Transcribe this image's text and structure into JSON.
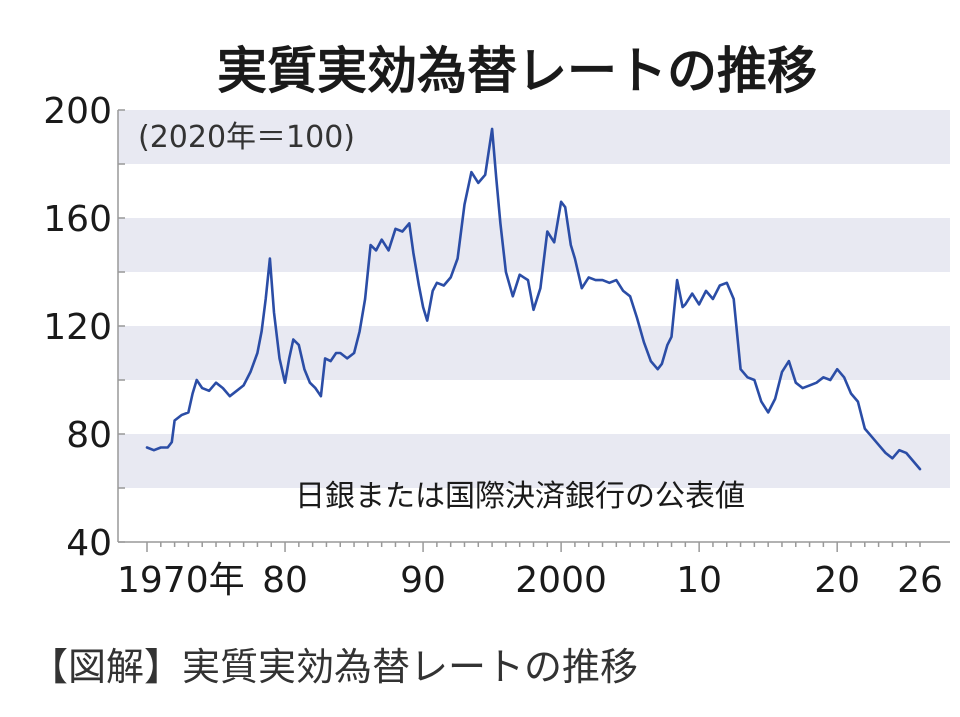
{
  "chart_data": {
    "type": "line",
    "title": "実質実効為替レートの推移",
    "subtitle": "(2020年＝100)",
    "source": "日銀または国際決済銀行の公表値",
    "caption": "【図解】実質実効為替レートの推移",
    "ylim": [
      40,
      200
    ],
    "yticks": [
      200,
      160,
      120,
      80,
      40
    ],
    "xlim": [
      1970,
      2026
    ],
    "xticks": [
      {
        "value": 1970,
        "label": "1970年"
      },
      {
        "value": 1980,
        "label": "80"
      },
      {
        "value": 1990,
        "label": "90"
      },
      {
        "value": 2000,
        "label": "2000"
      },
      {
        "value": 2010,
        "label": "10"
      },
      {
        "value": 2020,
        "label": "20"
      },
      {
        "value": 2026,
        "label": "26"
      }
    ],
    "grid_bands": [
      [
        60,
        80
      ],
      [
        100,
        120
      ],
      [
        140,
        160
      ],
      [
        180,
        200
      ]
    ],
    "colors": {
      "line": "#2b4da6",
      "band": "#e8e9f2"
    },
    "series": [
      {
        "x": [
          1970,
          1970.5,
          1971,
          1971.5,
          1971.8,
          1972,
          1972.5,
          1973,
          1973.3,
          1973.6,
          1974,
          1974.5,
          1975,
          1975.5,
          1976,
          1976.5,
          1977,
          1977.5,
          1978,
          1978.3,
          1978.6,
          1978.9,
          1979.2,
          1979.6,
          1980,
          1980.3,
          1980.6,
          1981,
          1981.4,
          1981.8,
          1982.2,
          1982.6,
          1982.9,
          1983.3,
          1983.7,
          1984,
          1984.5,
          1985,
          1985.4,
          1985.8,
          1986.2,
          1986.6,
          1987,
          1987.5,
          1988,
          1988.5,
          1989,
          1989.3,
          1989.7,
          1990,
          1990.3,
          1990.7,
          1991,
          1991.5,
          1992,
          1992.5,
          1993,
          1993.5,
          1994,
          1994.5,
          1995,
          1995.3,
          1995.6,
          1996,
          1996.5,
          1997,
          1997.3,
          1997.6,
          1998,
          1998.5,
          1999,
          1999.5,
          2000,
          2000.3,
          2000.7,
          2001,
          2001.5,
          2002,
          2002.5,
          2003,
          2003.5,
          2004,
          2004.5,
          2005,
          2005.5,
          2006,
          2006.5,
          2007,
          2007.3,
          2007.7,
          2008,
          2008.4,
          2008.8,
          2009,
          2009.5,
          2010,
          2010.5,
          2011,
          2011.5,
          2012,
          2012.5,
          2013,
          2013.5,
          2014,
          2014.5,
          2015,
          2015.5,
          2016,
          2016.5,
          2017,
          2017.5,
          2018,
          2018.5,
          2019,
          2019.5,
          2020,
          2020.5,
          2021,
          2021.5,
          2022,
          2022.5,
          2023,
          2023.5,
          2024,
          2024.5,
          2025,
          2025.5,
          2026
        ],
        "y": [
          75,
          74,
          75,
          75,
          77,
          85,
          87,
          88,
          95,
          100,
          97,
          96,
          99,
          97,
          94,
          96,
          98,
          103,
          110,
          118,
          130,
          145,
          125,
          108,
          99,
          108,
          115,
          113,
          104,
          99,
          97,
          94,
          108,
          107,
          110,
          110,
          108,
          110,
          118,
          130,
          150,
          148,
          152,
          148,
          156,
          155,
          158,
          147,
          135,
          127,
          122,
          133,
          136,
          135,
          138,
          145,
          165,
          177,
          173,
          176,
          193,
          175,
          158,
          140,
          131,
          139,
          138,
          137,
          126,
          134,
          155,
          151,
          166,
          164,
          150,
          145,
          134,
          138,
          137,
          137,
          136,
          137,
          133,
          131,
          123,
          114,
          107,
          104,
          106,
          113,
          116,
          137,
          127,
          128,
          132,
          128,
          133,
          130,
          135,
          136,
          130,
          104,
          101,
          100,
          92,
          88,
          93,
          103,
          107,
          99,
          97,
          98,
          99,
          101,
          100,
          104,
          101,
          95,
          92,
          82,
          79,
          76,
          73,
          71,
          74,
          73,
          70,
          67
        ]
      }
    ]
  }
}
